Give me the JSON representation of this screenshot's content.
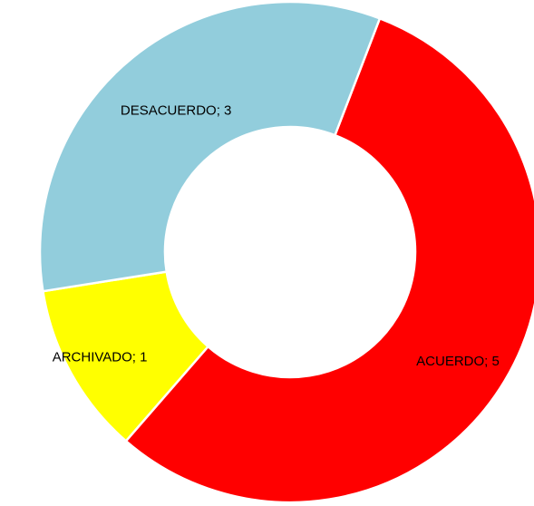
{
  "chart_data": {
    "type": "donut",
    "categories": [
      "ACUERDO",
      "ARCHIVADO",
      "DESACUERDO"
    ],
    "values": [
      5,
      1,
      3
    ],
    "value_labels": [
      "ACUERDO; 5",
      "ARCHIVADO; 1",
      "DESACUERDO; 3"
    ],
    "colors": [
      "#ff0000",
      "#ffff00",
      "#92cddc"
    ]
  }
}
